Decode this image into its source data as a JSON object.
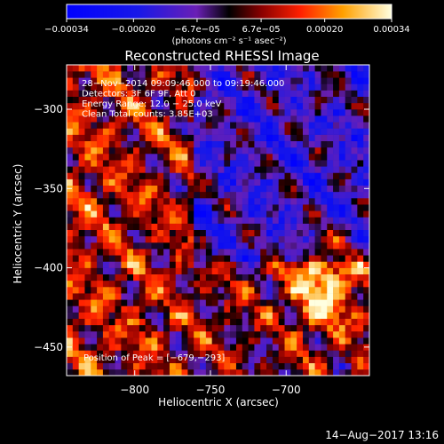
{
  "chart_data": {
    "type": "heatmap",
    "title": "Reconstructed RHESSI Image",
    "xlabel": "Heliocentric X (arcsec)",
    "ylabel": "Heliocentric Y (arcsec)",
    "xlim": [
      -845,
      -645
    ],
    "ylim": [
      -468,
      -272
    ],
    "xticks": [
      {
        "value": -800,
        "label": "−800"
      },
      {
        "value": -750,
        "label": "−750"
      },
      {
        "value": -700,
        "label": "−700"
      }
    ],
    "yticks": [
      {
        "value": -300,
        "label": "−300"
      },
      {
        "value": -350,
        "label": "−350"
      },
      {
        "value": -400,
        "label": "−400"
      },
      {
        "value": -450,
        "label": "−450"
      }
    ],
    "colorbar": {
      "range": [
        -0.00034,
        0.00034
      ],
      "ticks": [
        {
          "value": -0.00034,
          "label": "−0.00034"
        },
        {
          "value": -0.0002,
          "label": "−0.00020"
        },
        {
          "value": -6.7e-05,
          "label": "−6.7e−05"
        },
        {
          "value": 6.7e-05,
          "label": "6.7e−05"
        },
        {
          "value": 0.0002,
          "label": "0.00020"
        },
        {
          "value": 0.00034,
          "label": "0.00034"
        }
      ],
      "unit_label": "(photons cm⁻² s⁻¹ asec⁻²)"
    },
    "annotations": [
      "28−Nov−2014 09:09:46.000 to 09:19:46.000",
      "Detectors: 3F 6F 9F, Att 0",
      "Energy Range: 12.0 − 25.0 keV",
      "Clean    Total counts: 3.85E+03"
    ],
    "peak_label": "Position of Peak = [−679,−293]",
    "peak": [
      -679,
      -293
    ],
    "bright_region": [
      -675,
      -410
    ],
    "grid": false
  },
  "footer": {
    "timestamp": "14−Aug−2017 13:16"
  }
}
